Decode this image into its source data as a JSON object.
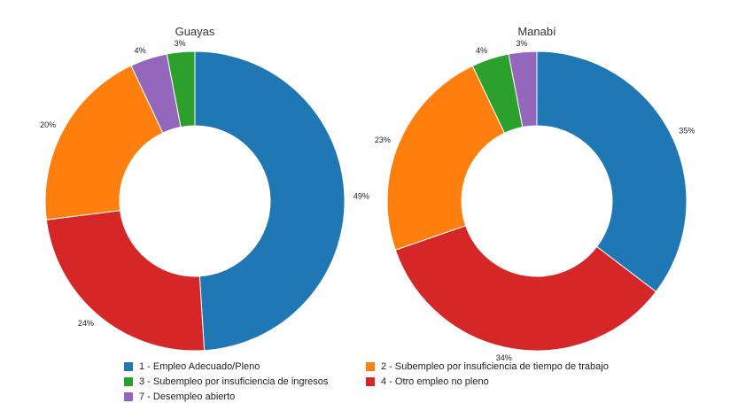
{
  "chart_data": [
    {
      "type": "pie",
      "style": "donut",
      "title": "Guayas",
      "categories": [
        "1 - Empleo Adecuado/Pleno",
        "4 - Otro empleo no pleno",
        "2 - Subempleo por insuficiencia de tiempo de trabajo",
        "7 - Desempleo abierto",
        "3 - Subempleo por insuficiencia de ingresos"
      ],
      "values": [
        49,
        24,
        20,
        4,
        3
      ],
      "labels": [
        "49%",
        "24%",
        "20%",
        "4%",
        "3%"
      ],
      "colors": [
        "#1f77b4",
        "#d62728",
        "#ff7f0e",
        "#9467bd",
        "#2ca02c"
      ]
    },
    {
      "type": "pie",
      "style": "donut",
      "title": "Manabí",
      "categories": [
        "1 - Empleo Adecuado/Pleno",
        "4 - Otro empleo no pleno",
        "2 - Subempleo por insuficiencia de tiempo de trabajo",
        "3 - Subempleo por insuficiencia de ingresos",
        "7 - Desempleo abierto"
      ],
      "values": [
        35,
        34,
        23,
        4,
        3
      ],
      "labels": [
        "35%",
        "34%",
        "23%",
        "4%",
        "3%"
      ],
      "colors": [
        "#1f77b4",
        "#d62728",
        "#ff7f0e",
        "#2ca02c",
        "#9467bd"
      ]
    }
  ],
  "legend": {
    "position": "bottom",
    "items": [
      {
        "label": "1 - Empleo Adecuado/Pleno",
        "color": "#1f77b4"
      },
      {
        "label": "2 - Subempleo por insuficiencia de tiempo de trabajo",
        "color": "#ff7f0e"
      },
      {
        "label": "3 - Subempleo por insuficiencia de ingresos",
        "color": "#2ca02c"
      },
      {
        "label": "4 - Otro empleo no pleno",
        "color": "#d62728"
      },
      {
        "label": "7 - Desempleo abierto",
        "color": "#9467bd"
      }
    ]
  }
}
